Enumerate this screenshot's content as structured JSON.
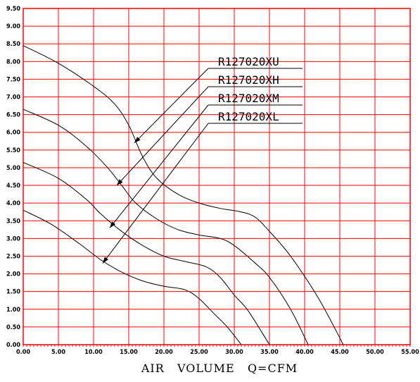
{
  "chart_data": {
    "type": "line",
    "xlabel": "AIR   VOLUME   Q=CFM",
    "ylabel": "",
    "xlim": [
      0,
      55
    ],
    "ylim": [
      0,
      9.5
    ],
    "x_ticks": [
      "0.00",
      "5.00",
      "10.00",
      "15.00",
      "20.00",
      "25.00",
      "30.00",
      "35.00",
      "40.00",
      "45.00",
      "50.00",
      "55.00"
    ],
    "y_ticks": [
      "0.00",
      "0.50",
      "1.00",
      "1.50",
      "2.00",
      "2.50",
      "3.00",
      "3.50",
      "4.00",
      "4.50",
      "5.00",
      "5.50",
      "6.00",
      "6.50",
      "7.00",
      "7.50",
      "8.00",
      "8.50",
      "9.00",
      "9.50"
    ],
    "grid": true,
    "colors": {
      "grid": "#ff0000",
      "curve": "#000000",
      "background": "#ffffff"
    },
    "series": [
      {
        "name": "R127020XU",
        "points": [
          [
            0,
            8.45
          ],
          [
            5,
            7.95
          ],
          [
            10,
            7.3
          ],
          [
            13,
            6.8
          ],
          [
            15,
            6.2
          ],
          [
            17,
            5.3
          ],
          [
            19,
            4.7
          ],
          [
            22,
            4.25
          ],
          [
            25,
            4.0
          ],
          [
            28,
            3.85
          ],
          [
            31,
            3.75
          ],
          [
            33,
            3.6
          ],
          [
            35,
            3.2
          ],
          [
            38,
            2.5
          ],
          [
            42,
            1.3
          ],
          [
            45.5,
            0
          ]
        ]
      },
      {
        "name": "R127020XH",
        "points": [
          [
            0,
            6.65
          ],
          [
            5,
            6.2
          ],
          [
            9,
            5.6
          ],
          [
            12,
            5.0
          ],
          [
            14,
            4.5
          ],
          [
            16,
            4.0
          ],
          [
            19,
            3.55
          ],
          [
            22,
            3.25
          ],
          [
            25,
            3.1
          ],
          [
            28,
            3.0
          ],
          [
            30,
            2.8
          ],
          [
            33,
            2.3
          ],
          [
            35,
            1.9
          ],
          [
            38,
            1.0
          ],
          [
            40.5,
            0
          ]
        ]
      },
      {
        "name": "R127020XM",
        "points": [
          [
            0,
            5.15
          ],
          [
            5,
            4.7
          ],
          [
            9,
            4.1
          ],
          [
            11,
            3.7
          ],
          [
            14,
            3.2
          ],
          [
            17,
            2.8
          ],
          [
            20,
            2.5
          ],
          [
            23,
            2.35
          ],
          [
            26,
            2.2
          ],
          [
            28,
            1.9
          ],
          [
            30,
            1.4
          ],
          [
            32,
            0.95
          ],
          [
            35,
            0
          ]
        ]
      },
      {
        "name": "R127020XL",
        "points": [
          [
            0,
            3.8
          ],
          [
            4,
            3.4
          ],
          [
            8,
            2.85
          ],
          [
            11,
            2.4
          ],
          [
            14,
            2.05
          ],
          [
            17,
            1.8
          ],
          [
            20,
            1.65
          ],
          [
            23,
            1.55
          ],
          [
            25,
            1.3
          ],
          [
            27,
            0.9
          ],
          [
            29,
            0.5
          ],
          [
            31,
            0
          ]
        ]
      }
    ],
    "annotations": [
      {
        "label": "R127020XU",
        "target": [
          15.8,
          5.7
        ]
      },
      {
        "label": "R127020XH",
        "target": [
          13.3,
          4.5
        ]
      },
      {
        "label": "R127020XM",
        "target": [
          12.3,
          3.3
        ]
      },
      {
        "label": "R127020XL",
        "target": [
          11.3,
          2.3
        ]
      }
    ]
  }
}
